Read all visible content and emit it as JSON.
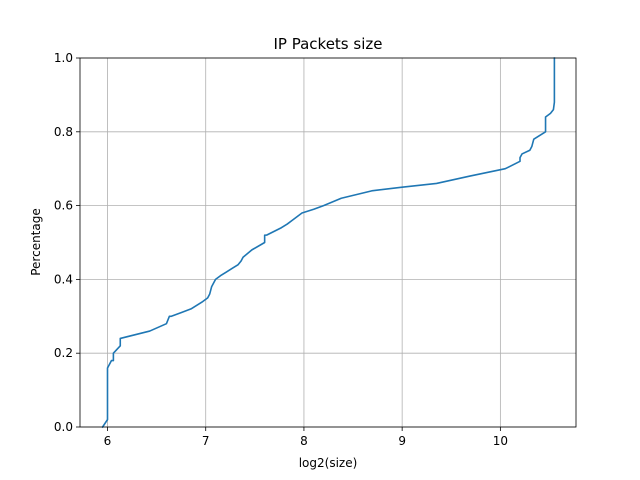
{
  "chart_data": {
    "type": "line",
    "title": "IP Packets size",
    "xlabel": "log2(size)",
    "ylabel": "Percentage",
    "xlim": [
      5.72,
      10.77
    ],
    "ylim": [
      0.0,
      1.0
    ],
    "xticks": [
      "6",
      "7",
      "8",
      "9",
      "10"
    ],
    "xtick_values": [
      6,
      7,
      8,
      9,
      10
    ],
    "yticks": [
      "0.0",
      "0.2",
      "0.4",
      "0.6",
      "0.8",
      "1.0"
    ],
    "ytick_values": [
      0.0,
      0.2,
      0.4,
      0.6,
      0.8,
      1.0
    ],
    "grid": true,
    "line_color": "#1f77b4",
    "series": [
      {
        "x": [
          5.95,
          6.0,
          6.0,
          6.0,
          6.04,
          6.06,
          6.06,
          6.13,
          6.13,
          6.43,
          6.6,
          6.63,
          6.65,
          6.75,
          6.85,
          6.97,
          7.02,
          7.04,
          7.06,
          7.1,
          7.15,
          7.21,
          7.27,
          7.33,
          7.36,
          7.38,
          7.47,
          7.6,
          7.6,
          7.62,
          7.77,
          7.83,
          7.88,
          7.98,
          8.1,
          8.2,
          8.38,
          8.69,
          9.0,
          9.35,
          9.69,
          10.05,
          10.2,
          10.2,
          10.22,
          10.3,
          10.32,
          10.34,
          10.46,
          10.46,
          10.51,
          10.54,
          10.55,
          10.55,
          10.55
        ],
        "y": [
          0.0,
          0.02,
          0.1,
          0.16,
          0.18,
          0.18,
          0.2,
          0.22,
          0.24,
          0.26,
          0.28,
          0.3,
          0.3,
          0.31,
          0.32,
          0.34,
          0.35,
          0.36,
          0.38,
          0.4,
          0.41,
          0.42,
          0.43,
          0.44,
          0.45,
          0.46,
          0.48,
          0.5,
          0.52,
          0.52,
          0.54,
          0.55,
          0.56,
          0.58,
          0.59,
          0.6,
          0.62,
          0.64,
          0.65,
          0.66,
          0.68,
          0.7,
          0.72,
          0.73,
          0.74,
          0.75,
          0.76,
          0.78,
          0.8,
          0.84,
          0.85,
          0.86,
          0.88,
          0.95,
          1.0
        ]
      }
    ]
  }
}
